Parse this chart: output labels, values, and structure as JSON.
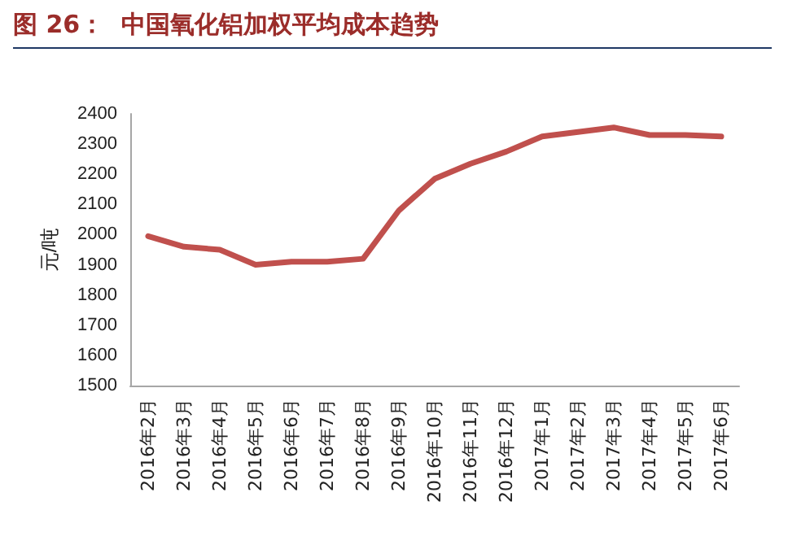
{
  "chart_data": {
    "type": "line",
    "title": "图 26：  中国氧化铝加权平均成本趋势",
    "ylabel": "元/吨",
    "categories": [
      "2016年2月",
      "2016年3月",
      "2016年4月",
      "2016年5月",
      "2016年6月",
      "2016年7月",
      "2016年8月",
      "2016年9月",
      "2016年10月",
      "2016年11月",
      "2016年12月",
      "2017年1月",
      "2017年2月",
      "2017年3月",
      "2017年4月",
      "2017年5月",
      "2017年6月"
    ],
    "series": [
      {
        "color": "#c0504d",
        "values": [
          1995,
          1960,
          1950,
          1900,
          1910,
          1910,
          1920,
          2080,
          2185,
          2235,
          2275,
          2325,
          2340,
          2355,
          2330,
          2330,
          2325
        ]
      }
    ],
    "ylim": [
      1500,
      2400
    ],
    "yticks": [
      1500,
      1600,
      1700,
      1800,
      1900,
      2000,
      2100,
      2200,
      2300,
      2400
    ],
    "grid": false,
    "marker": "none",
    "line_style": "solid"
  }
}
